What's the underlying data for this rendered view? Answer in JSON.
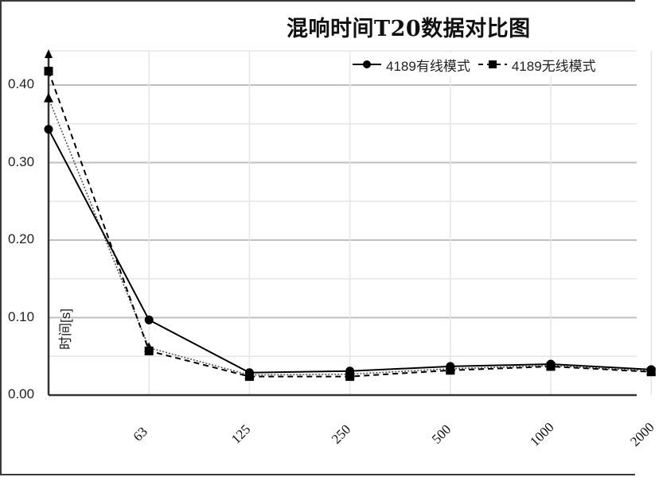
{
  "chart_data": {
    "type": "line",
    "title": "混响时间T20数据对比图",
    "xlabel": "",
    "ylabel": "时间[s]",
    "categories": [
      "",
      "63",
      "125",
      "250",
      "500",
      "1000",
      "2000"
    ],
    "ylim": [
      0,
      0.45
    ],
    "yticks": [
      "0.00",
      "0.10",
      "0.20",
      "0.30",
      "0.40"
    ],
    "grid": true,
    "legend_position": "top-right",
    "series": [
      {
        "name": "4189有线模式",
        "marker": "circle",
        "line": "solid",
        "values": [
          0.343,
          0.097,
          0.029,
          0.031,
          0.037,
          0.04,
          0.033
        ]
      },
      {
        "name": "4189无线模式",
        "marker": "square",
        "line": "dashed",
        "values": [
          0.418,
          0.057,
          0.024,
          0.024,
          0.032,
          0.037,
          0.03
        ]
      },
      {
        "name": "",
        "marker": "triangle",
        "line": "dotted",
        "values": [
          0.383,
          0.061,
          0.026,
          0.027,
          0.034,
          0.038,
          0.031
        ]
      }
    ]
  },
  "legend": {
    "items": [
      {
        "label": "4189有线模式"
      },
      {
        "label": "4189无线模式"
      }
    ]
  },
  "axis": {
    "y_label": "时间[s]",
    "y_ticks": [
      "0.00",
      "0.10",
      "0.20",
      "0.30",
      "0.40"
    ],
    "x_ticks": [
      "63",
      "125",
      "250",
      "500",
      "1000",
      "2000"
    ]
  },
  "colors": {
    "series": "#000000",
    "major_grid": "#bfbfbf",
    "minor_grid": "#e6e6e6",
    "tick_text": "#222222"
  }
}
